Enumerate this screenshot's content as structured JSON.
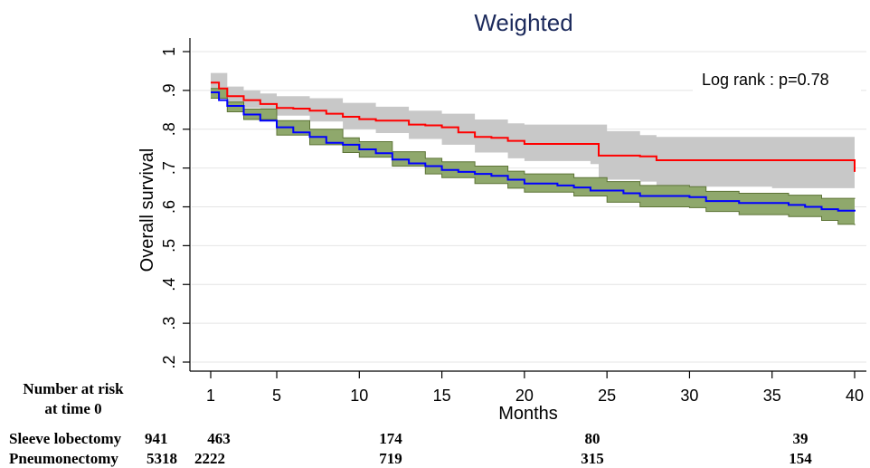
{
  "chart_data": {
    "type": "line",
    "title": "Weighted",
    "xlabel": "Months",
    "ylabel": "Overall survival",
    "xlim": [
      0,
      40
    ],
    "ylim": [
      0.2,
      1.0
    ],
    "x_ticks": [
      1,
      5,
      10,
      15,
      20,
      25,
      30,
      35,
      40
    ],
    "y_ticks": [
      0.2,
      0.3,
      0.4,
      0.5,
      0.6,
      0.7,
      0.8,
      0.9,
      1.0
    ],
    "y_tick_labels": [
      ".2",
      ".3",
      ".4",
      ".5",
      ".6",
      ".7",
      ".8",
      ".9",
      "1"
    ],
    "grid": "horizontal",
    "annotation": "Log rank : p=0.78",
    "series": [
      {
        "key": "sleeve",
        "color": "#ff0000",
        "band_color": "#c8c8c8",
        "points": [
          [
            1,
            0.92
          ],
          [
            1.5,
            0.905
          ],
          [
            2,
            0.885
          ],
          [
            3,
            0.875
          ],
          [
            4,
            0.865
          ],
          [
            5,
            0.855
          ],
          [
            6,
            0.853
          ],
          [
            7,
            0.848
          ],
          [
            8,
            0.84
          ],
          [
            9,
            0.832
          ],
          [
            10,
            0.826
          ],
          [
            11,
            0.822
          ],
          [
            12,
            0.822
          ],
          [
            13,
            0.812
          ],
          [
            14,
            0.81
          ],
          [
            15,
            0.805
          ],
          [
            16,
            0.792
          ],
          [
            17,
            0.78
          ],
          [
            18,
            0.778
          ],
          [
            19,
            0.77
          ],
          [
            20,
            0.762
          ],
          [
            22,
            0.762
          ],
          [
            24,
            0.762
          ],
          [
            24.5,
            0.732
          ],
          [
            26,
            0.732
          ],
          [
            27,
            0.73
          ],
          [
            28,
            0.72
          ],
          [
            30,
            0.72
          ],
          [
            35,
            0.72
          ],
          [
            38,
            0.72
          ],
          [
            39.5,
            0.72
          ],
          [
            40,
            0.69
          ]
        ],
        "upper": [
          [
            1,
            0.945
          ],
          [
            2,
            0.91
          ],
          [
            3,
            0.9
          ],
          [
            4,
            0.892
          ],
          [
            5,
            0.885
          ],
          [
            7,
            0.88
          ],
          [
            9,
            0.868
          ],
          [
            11,
            0.858
          ],
          [
            13,
            0.848
          ],
          [
            15,
            0.84
          ],
          [
            17,
            0.825
          ],
          [
            19,
            0.815
          ],
          [
            20,
            0.812
          ],
          [
            24,
            0.812
          ],
          [
            25,
            0.795
          ],
          [
            27,
            0.785
          ],
          [
            28,
            0.78
          ],
          [
            39,
            0.78
          ],
          [
            40,
            0.768
          ]
        ],
        "lower": [
          [
            1,
            0.895
          ],
          [
            2,
            0.865
          ],
          [
            3,
            0.855
          ],
          [
            4,
            0.845
          ],
          [
            5,
            0.835
          ],
          [
            7,
            0.82
          ],
          [
            9,
            0.8
          ],
          [
            11,
            0.79
          ],
          [
            13,
            0.775
          ],
          [
            15,
            0.76
          ],
          [
            17,
            0.74
          ],
          [
            19,
            0.725
          ],
          [
            20,
            0.718
          ],
          [
            24,
            0.71
          ],
          [
            24.5,
            0.67
          ],
          [
            27,
            0.665
          ],
          [
            28,
            0.652
          ],
          [
            35,
            0.648
          ],
          [
            38,
            0.648
          ],
          [
            39.5,
            0.648
          ],
          [
            40,
            0.62
          ]
        ]
      },
      {
        "key": "pneumo",
        "color": "#0000ff",
        "band_color": "#8fa86c",
        "points": [
          [
            1,
            0.895
          ],
          [
            1.5,
            0.875
          ],
          [
            2,
            0.86
          ],
          [
            3,
            0.838
          ],
          [
            4,
            0.822
          ],
          [
            5,
            0.805
          ],
          [
            6,
            0.792
          ],
          [
            7,
            0.78
          ],
          [
            8,
            0.765
          ],
          [
            9,
            0.76
          ],
          [
            10,
            0.748
          ],
          [
            11,
            0.738
          ],
          [
            12,
            0.722
          ],
          [
            13,
            0.712
          ],
          [
            14,
            0.705
          ],
          [
            15,
            0.695
          ],
          [
            16,
            0.69
          ],
          [
            17,
            0.685
          ],
          [
            18,
            0.68
          ],
          [
            19,
            0.67
          ],
          [
            20,
            0.66
          ],
          [
            22,
            0.655
          ],
          [
            23,
            0.65
          ],
          [
            24,
            0.642
          ],
          [
            26,
            0.635
          ],
          [
            27,
            0.628
          ],
          [
            30,
            0.625
          ],
          [
            31,
            0.615
          ],
          [
            33,
            0.61
          ],
          [
            36,
            0.605
          ],
          [
            37,
            0.6
          ],
          [
            38,
            0.594
          ],
          [
            39,
            0.59
          ],
          [
            40,
            0.588
          ]
        ],
        "upper": [
          [
            1,
            0.905
          ],
          [
            2,
            0.87
          ],
          [
            3,
            0.852
          ],
          [
            5,
            0.822
          ],
          [
            7,
            0.8
          ],
          [
            9,
            0.778
          ],
          [
            10,
            0.768
          ],
          [
            12,
            0.742
          ],
          [
            14,
            0.725
          ],
          [
            15,
            0.716
          ],
          [
            17,
            0.705
          ],
          [
            19,
            0.692
          ],
          [
            20,
            0.685
          ],
          [
            23,
            0.675
          ],
          [
            25,
            0.665
          ],
          [
            27,
            0.655
          ],
          [
            30,
            0.652
          ],
          [
            31,
            0.64
          ],
          [
            33,
            0.635
          ],
          [
            36,
            0.63
          ],
          [
            38,
            0.622
          ],
          [
            40,
            0.62
          ]
        ],
        "lower": [
          [
            1,
            0.88
          ],
          [
            2,
            0.845
          ],
          [
            3,
            0.825
          ],
          [
            5,
            0.785
          ],
          [
            7,
            0.76
          ],
          [
            9,
            0.74
          ],
          [
            10,
            0.728
          ],
          [
            12,
            0.705
          ],
          [
            14,
            0.685
          ],
          [
            15,
            0.675
          ],
          [
            17,
            0.66
          ],
          [
            19,
            0.648
          ],
          [
            20,
            0.638
          ],
          [
            23,
            0.628
          ],
          [
            25,
            0.612
          ],
          [
            27,
            0.6
          ],
          [
            30,
            0.598
          ],
          [
            31,
            0.588
          ],
          [
            33,
            0.58
          ],
          [
            36,
            0.575
          ],
          [
            38,
            0.565
          ],
          [
            39,
            0.555
          ],
          [
            40,
            0.553
          ]
        ]
      }
    ],
    "risk_table": {
      "heading": [
        "Number at risk",
        "at time 0"
      ],
      "rows": [
        {
          "label": "Sleeve lobectomy",
          "values": [
            "941",
            "463",
            "174",
            "80",
            "39"
          ]
        },
        {
          "label": "Pneumonectomy",
          "values": [
            "5318",
            "2222",
            "719",
            "315",
            "154"
          ]
        }
      ]
    }
  }
}
